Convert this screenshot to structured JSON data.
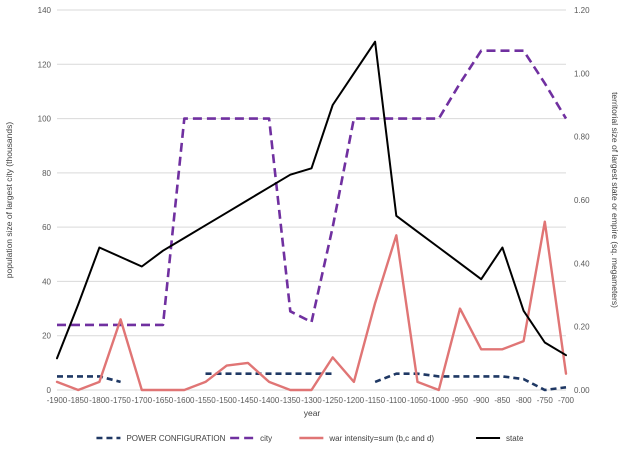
{
  "chart_data": {
    "type": "line",
    "x": [
      -1900,
      -1850,
      -1800,
      -1750,
      -1700,
      -1650,
      -1600,
      -1550,
      -1500,
      -1450,
      -1400,
      -1350,
      -1300,
      -1250,
      -1200,
      -1150,
      -1100,
      -1050,
      -1000,
      -950,
      -900,
      -850,
      -800,
      -750,
      -700
    ],
    "xlabel": "year",
    "ylabel": "population size of largest city (thousands)",
    "y2label": "territorial size of largest state or empire (sq. megameters)",
    "ylim": [
      0,
      140
    ],
    "y2lim": [
      0,
      1.2
    ],
    "yticks": [
      "0",
      "20",
      "40",
      "60",
      "80",
      "100",
      "120",
      "140"
    ],
    "y2ticks": [
      "0.00",
      "0.20",
      "0.40",
      "0.60",
      "0.80",
      "1.00",
      "1.20"
    ],
    "grid": true,
    "legend_position": "bottom",
    "series": [
      {
        "name": "POWER CONFIGURATION",
        "axis": "left",
        "style": "dashed-bold",
        "color": "#1f3864",
        "values": [
          5,
          5,
          5,
          3,
          null,
          null,
          null,
          6,
          6,
          6,
          6,
          6,
          6,
          6,
          null,
          3,
          6,
          6,
          5,
          5,
          5,
          5,
          4,
          0,
          1
        ]
      },
      {
        "name": "city",
        "axis": "left",
        "style": "dashed",
        "color": "#7030a0",
        "values": [
          24,
          24,
          24,
          24,
          24,
          24,
          100,
          100,
          100,
          100,
          100,
          29,
          25,
          60,
          100,
          100,
          100,
          100,
          100,
          113,
          125,
          125,
          125,
          113,
          100
        ]
      },
      {
        "name": "war intensity=sum (b,c and d)",
        "axis": "left",
        "style": "solid-light",
        "color": "#e07575",
        "values": [
          3,
          0,
          3,
          26,
          0,
          0,
          0,
          3,
          9,
          10,
          3,
          0,
          0,
          12,
          3,
          32,
          57,
          3,
          0,
          30,
          15,
          15,
          18,
          62,
          6
        ]
      },
      {
        "name": "state",
        "axis": "right",
        "style": "solid",
        "color": "#000000",
        "values": [
          0.1,
          0.27,
          0.45,
          0.42,
          0.39,
          0.44,
          0.48,
          0.52,
          0.56,
          0.6,
          0.64,
          0.68,
          0.7,
          0.9,
          1.0,
          1.1,
          0.55,
          0.5,
          0.45,
          0.4,
          0.35,
          0.45,
          0.25,
          0.15,
          0.11
        ]
      }
    ]
  }
}
